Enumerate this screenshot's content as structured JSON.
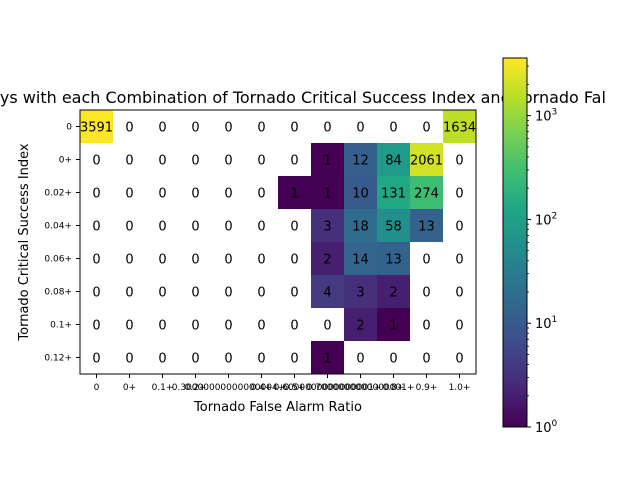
{
  "chart_data": {
    "type": "heatmap",
    "title": "ays with each Combination of Tornado Critical Success Index and Tornado Fal",
    "xlabel": "Tornado False Alarm Ratio",
    "ylabel": "Tornado Critical Success Index",
    "x_categories": [
      "0",
      "0+",
      "0.1+",
      "0.2+",
      "0.30000000000000004+",
      "0.4+",
      "0.5+",
      "0.6000000000000001+",
      "0.7000000000000001+",
      "0.8+",
      "0.9+",
      "1.0+"
    ],
    "x_tick_labels_visible": [
      "0",
      "0+",
      "0.1+",
      "0.2+",
      "0.30000000000000004+",
      "0.4+",
      "0.5+",
      "0.6000000000000001+",
      "0.7000000000000001+",
      "0.8+",
      "0.9+",
      "1.0+"
    ],
    "y_categories": [
      "0",
      "0+",
      "0.02+",
      "0.04+",
      "0.06+",
      "0.08+",
      "0.1+",
      "0.12+"
    ],
    "values": [
      [
        3591,
        0,
        0,
        0,
        0,
        0,
        0,
        0,
        0,
        0,
        0,
        1634
      ],
      [
        0,
        0,
        0,
        0,
        0,
        0,
        0,
        1,
        12,
        84,
        2061,
        0
      ],
      [
        0,
        0,
        0,
        0,
        0,
        0,
        1,
        1,
        10,
        131,
        274,
        0
      ],
      [
        0,
        0,
        0,
        0,
        0,
        0,
        0,
        3,
        18,
        58,
        13,
        0
      ],
      [
        0,
        0,
        0,
        0,
        0,
        0,
        0,
        2,
        14,
        13,
        0,
        0
      ],
      [
        0,
        0,
        0,
        0,
        0,
        0,
        0,
        4,
        3,
        2,
        0,
        0
      ],
      [
        0,
        0,
        0,
        0,
        0,
        0,
        0,
        0,
        2,
        1,
        0,
        0
      ],
      [
        0,
        0,
        0,
        0,
        0,
        0,
        0,
        1,
        0,
        0,
        0,
        0
      ]
    ],
    "colorbar": {
      "scale": "log",
      "colormap": "viridis",
      "range": [
        1,
        3591
      ],
      "tick_labels": [
        "10",
        "10",
        "10",
        "10"
      ],
      "tick_exponents": [
        "0",
        "1",
        "2",
        "3"
      ],
      "tick_values": [
        1,
        10,
        100,
        1000
      ]
    },
    "zero_cell_color": "#ffffff",
    "grid": false
  }
}
